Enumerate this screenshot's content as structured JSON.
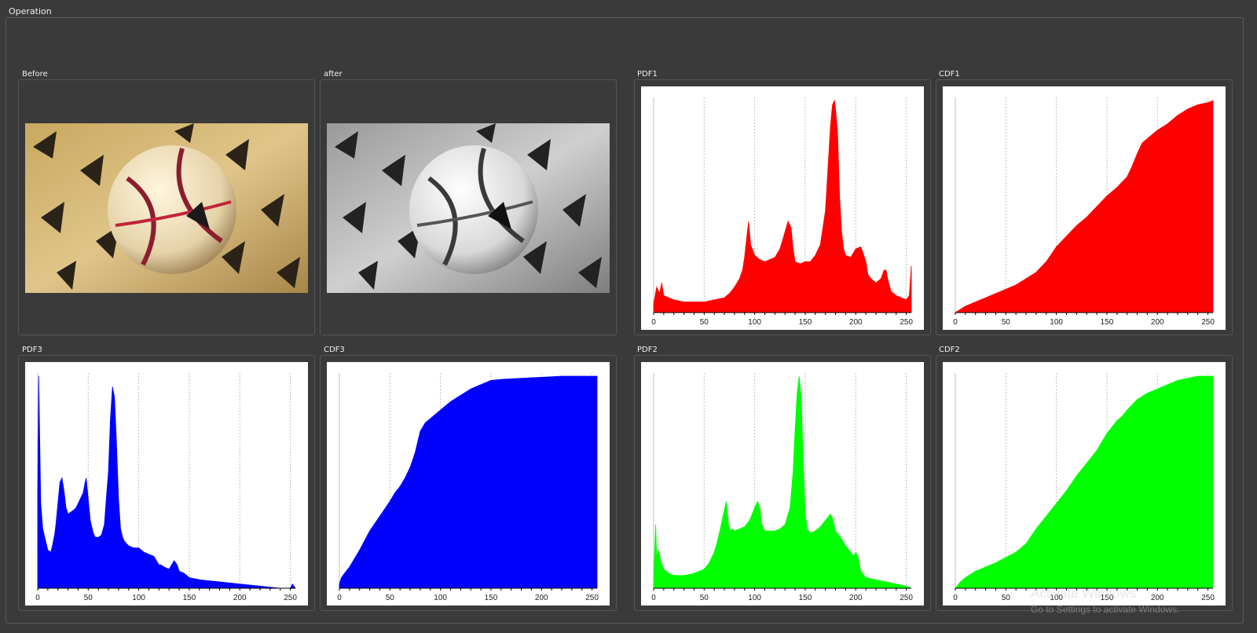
{
  "window": {
    "group_label": "Operation"
  },
  "panels": {
    "before": {
      "title": "Before"
    },
    "after": {
      "title": "after"
    },
    "pdf1": {
      "title": "PDF1"
    },
    "cdf1": {
      "title": "CDF1"
    },
    "pdf3": {
      "title": "PDF3"
    },
    "cdf3": {
      "title": "CDF3"
    },
    "pdf2": {
      "title": "PDF2"
    },
    "cdf2": {
      "title": "CDF2"
    }
  },
  "watermark": {
    "line1": "Activate Windows",
    "line2": "Go to Settings to activate Windows."
  },
  "colors": {
    "red": "#ff0000",
    "green": "#00ff00",
    "blue": "#0000ff",
    "background": "#3a3a3a"
  },
  "chart_data": [
    {
      "id": "pdf1",
      "type": "area",
      "title": "PDF1",
      "color": "#ff0000",
      "xlim": [
        0,
        255
      ],
      "xticks": [
        0,
        50,
        100,
        150,
        200,
        250
      ],
      "x": [
        0,
        3,
        6,
        8,
        10,
        15,
        20,
        30,
        40,
        50,
        60,
        70,
        75,
        80,
        85,
        88,
        90,
        92,
        94,
        96,
        100,
        105,
        110,
        115,
        120,
        125,
        130,
        133,
        136,
        138,
        140,
        145,
        150,
        155,
        160,
        165,
        170,
        173,
        175,
        177,
        179,
        180,
        182,
        184,
        186,
        188,
        190,
        195,
        200,
        205,
        208,
        210,
        212,
        215,
        220,
        225,
        228,
        230,
        232,
        235,
        240,
        245,
        250,
        253,
        255
      ],
      "values": [
        0.04,
        0.12,
        0.09,
        0.14,
        0.08,
        0.07,
        0.06,
        0.05,
        0.05,
        0.05,
        0.06,
        0.07,
        0.09,
        0.12,
        0.16,
        0.2,
        0.26,
        0.35,
        0.43,
        0.32,
        0.27,
        0.25,
        0.24,
        0.25,
        0.26,
        0.3,
        0.38,
        0.43,
        0.4,
        0.3,
        0.24,
        0.23,
        0.24,
        0.24,
        0.27,
        0.32,
        0.48,
        0.72,
        0.88,
        0.98,
        1.0,
        0.96,
        0.85,
        0.55,
        0.38,
        0.3,
        0.27,
        0.26,
        0.3,
        0.31,
        0.27,
        0.24,
        0.18,
        0.16,
        0.14,
        0.16,
        0.2,
        0.2,
        0.15,
        0.1,
        0.08,
        0.07,
        0.06,
        0.08,
        0.22
      ]
    },
    {
      "id": "cdf1",
      "type": "area",
      "title": "CDF1",
      "color": "#ff0000",
      "xlim": [
        0,
        255
      ],
      "xticks": [
        0,
        50,
        100,
        150,
        200,
        250
      ],
      "x": [
        0,
        10,
        30,
        50,
        60,
        70,
        80,
        90,
        100,
        110,
        120,
        130,
        140,
        150,
        160,
        170,
        175,
        180,
        185,
        190,
        200,
        210,
        220,
        230,
        240,
        250,
        255
      ],
      "values": [
        0.0,
        0.03,
        0.07,
        0.11,
        0.13,
        0.16,
        0.19,
        0.24,
        0.31,
        0.36,
        0.41,
        0.45,
        0.5,
        0.55,
        0.59,
        0.64,
        0.69,
        0.75,
        0.8,
        0.82,
        0.86,
        0.89,
        0.93,
        0.96,
        0.98,
        0.99,
        1.0
      ]
    },
    {
      "id": "pdf3",
      "type": "area",
      "title": "PDF3",
      "color": "#0000ff",
      "xlim": [
        0,
        255
      ],
      "xticks": [
        0,
        50,
        100,
        150,
        200,
        250
      ],
      "x": [
        0,
        1,
        2,
        3,
        5,
        8,
        10,
        13,
        15,
        17,
        18,
        20,
        22,
        24,
        26,
        28,
        30,
        33,
        36,
        38,
        40,
        43,
        45,
        47,
        48,
        50,
        52,
        55,
        57,
        60,
        63,
        66,
        68,
        70,
        72,
        74,
        76,
        78,
        80,
        82,
        84,
        86,
        88,
        90,
        95,
        100,
        105,
        110,
        115,
        120,
        122,
        125,
        130,
        135,
        138,
        140,
        145,
        150,
        160,
        180,
        200,
        220,
        240,
        250,
        252,
        255
      ],
      "values": [
        0.45,
        1.0,
        0.7,
        0.4,
        0.28,
        0.22,
        0.18,
        0.17,
        0.21,
        0.26,
        0.3,
        0.4,
        0.5,
        0.52,
        0.46,
        0.38,
        0.35,
        0.36,
        0.37,
        0.38,
        0.4,
        0.43,
        0.45,
        0.5,
        0.52,
        0.42,
        0.32,
        0.26,
        0.24,
        0.24,
        0.25,
        0.3,
        0.43,
        0.55,
        0.8,
        0.95,
        0.9,
        0.68,
        0.42,
        0.28,
        0.24,
        0.22,
        0.21,
        0.2,
        0.19,
        0.19,
        0.17,
        0.16,
        0.15,
        0.11,
        0.11,
        0.1,
        0.09,
        0.13,
        0.11,
        0.08,
        0.07,
        0.05,
        0.04,
        0.03,
        0.02,
        0.01,
        0.0,
        0.0,
        0.02,
        0.0
      ]
    },
    {
      "id": "cdf3",
      "type": "area",
      "title": "CDF3",
      "color": "#0000ff",
      "xlim": [
        0,
        255
      ],
      "xticks": [
        0,
        50,
        100,
        150,
        200,
        250
      ],
      "x": [
        0,
        2,
        5,
        10,
        20,
        30,
        40,
        50,
        55,
        60,
        65,
        70,
        75,
        80,
        85,
        90,
        95,
        100,
        110,
        120,
        130,
        140,
        150,
        160,
        180,
        200,
        220,
        240,
        255
      ],
      "values": [
        0.02,
        0.05,
        0.07,
        0.1,
        0.18,
        0.27,
        0.34,
        0.41,
        0.45,
        0.48,
        0.52,
        0.57,
        0.64,
        0.74,
        0.78,
        0.8,
        0.82,
        0.84,
        0.88,
        0.91,
        0.94,
        0.96,
        0.98,
        0.985,
        0.99,
        0.995,
        1.0,
        1.0,
        1.0
      ]
    },
    {
      "id": "pdf2",
      "type": "area",
      "title": "PDF2",
      "color": "#00ff00",
      "xlim": [
        0,
        255
      ],
      "xticks": [
        0,
        50,
        100,
        150,
        200,
        250
      ],
      "x": [
        0,
        2,
        3,
        5,
        7,
        10,
        15,
        20,
        30,
        40,
        50,
        55,
        60,
        63,
        66,
        70,
        72,
        74,
        76,
        78,
        80,
        85,
        90,
        95,
        100,
        103,
        105,
        107,
        110,
        115,
        120,
        125,
        130,
        135,
        138,
        140,
        142,
        144,
        146,
        148,
        150,
        152,
        155,
        160,
        165,
        170,
        175,
        177,
        180,
        185,
        190,
        195,
        198,
        200,
        202,
        205,
        210,
        220,
        230,
        240,
        250,
        255
      ],
      "values": [
        0.04,
        0.3,
        0.15,
        0.18,
        0.13,
        0.09,
        0.07,
        0.06,
        0.06,
        0.07,
        0.09,
        0.12,
        0.17,
        0.22,
        0.28,
        0.37,
        0.41,
        0.3,
        0.27,
        0.28,
        0.27,
        0.28,
        0.29,
        0.32,
        0.38,
        0.41,
        0.38,
        0.3,
        0.27,
        0.27,
        0.27,
        0.28,
        0.3,
        0.38,
        0.55,
        0.75,
        0.92,
        1.0,
        0.9,
        0.6,
        0.35,
        0.28,
        0.26,
        0.27,
        0.29,
        0.32,
        0.35,
        0.33,
        0.27,
        0.24,
        0.2,
        0.17,
        0.15,
        0.17,
        0.15,
        0.08,
        0.05,
        0.04,
        0.03,
        0.02,
        0.01,
        0.0
      ]
    },
    {
      "id": "cdf2",
      "type": "area",
      "title": "CDF2",
      "color": "#00ff00",
      "xlim": [
        0,
        255
      ],
      "xticks": [
        0,
        50,
        100,
        150,
        200,
        250
      ],
      "x": [
        0,
        5,
        10,
        20,
        40,
        60,
        70,
        80,
        90,
        100,
        110,
        120,
        130,
        140,
        150,
        160,
        165,
        170,
        180,
        190,
        200,
        210,
        220,
        230,
        240,
        250,
        255
      ],
      "values": [
        0.0,
        0.03,
        0.05,
        0.08,
        0.12,
        0.17,
        0.21,
        0.28,
        0.34,
        0.4,
        0.46,
        0.53,
        0.59,
        0.65,
        0.73,
        0.79,
        0.81,
        0.84,
        0.89,
        0.92,
        0.94,
        0.96,
        0.98,
        0.99,
        1.0,
        1.0,
        1.0
      ]
    }
  ]
}
